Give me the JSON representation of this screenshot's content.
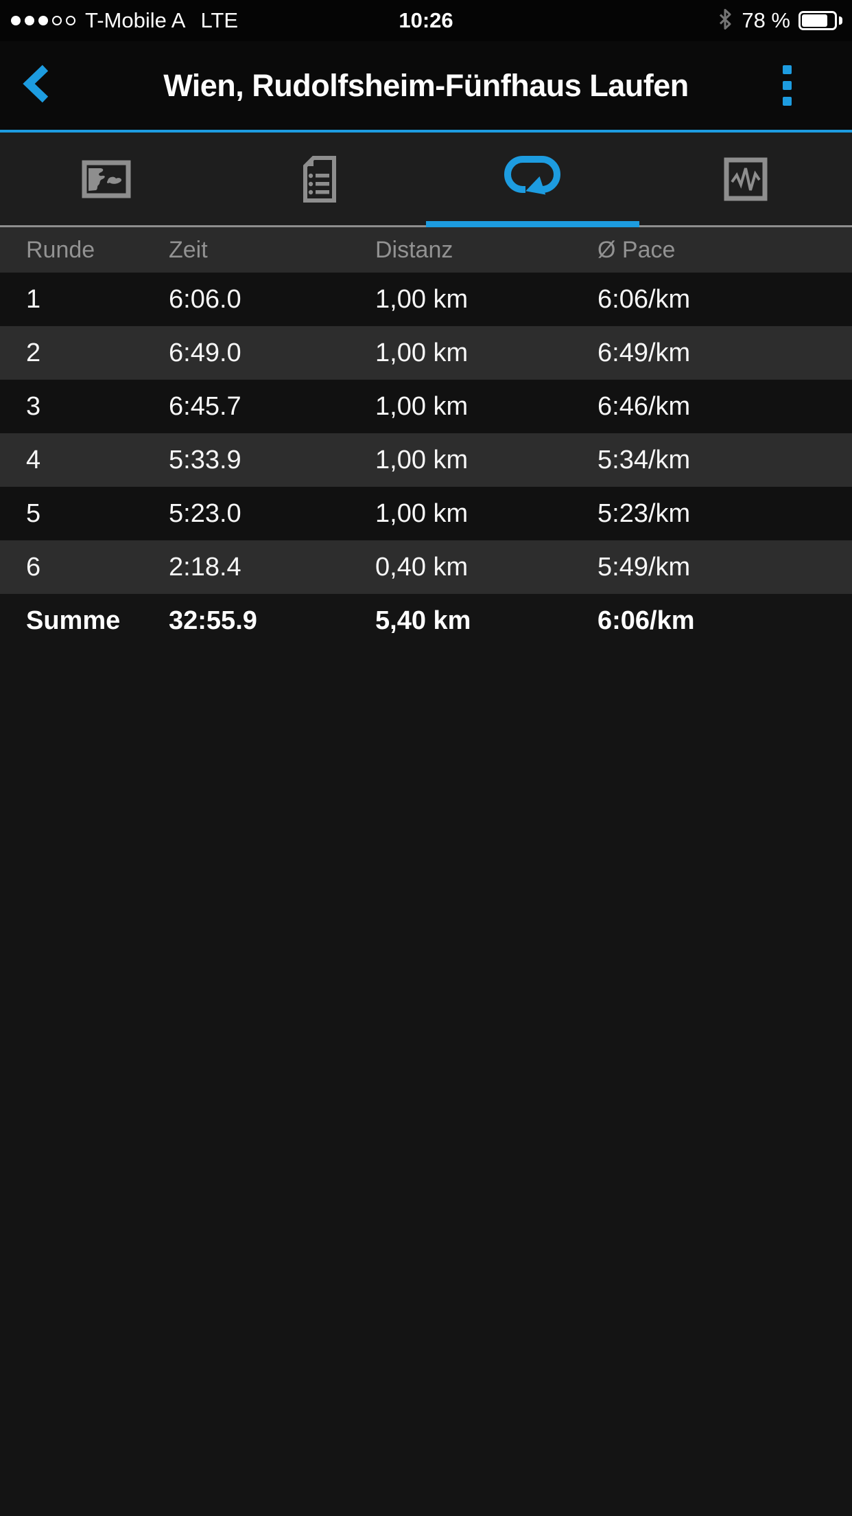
{
  "colors": {
    "accent": "#1d9ce0",
    "inactive_icon": "#8e8e8e",
    "header_text": "#929292",
    "row_dark": "#111111",
    "row_light": "#2d2d2d"
  },
  "status_bar": {
    "signal": {
      "filled_dots": 3,
      "total_dots": 5
    },
    "carrier": "T-Mobile A",
    "network": "LTE",
    "time": "10:26",
    "bluetooth_icon": "bluetooth",
    "battery_label": "78 %",
    "battery_level_percent": 78
  },
  "nav": {
    "back_icon": "chevron-left",
    "title": "Wien, Rudolfsheim-Fünfhaus Laufen",
    "menu_icon": "vertical-dots-menu"
  },
  "tabs": [
    {
      "id": "map",
      "icon": "map-icon",
      "active": false
    },
    {
      "id": "details",
      "icon": "document-list-icon",
      "active": false
    },
    {
      "id": "laps",
      "icon": "laps-loop-icon",
      "active": true
    },
    {
      "id": "charts",
      "icon": "chart-zigzag-icon",
      "active": false
    }
  ],
  "laps_table": {
    "columns": [
      "Runde",
      "Zeit",
      "Distanz",
      "Ø Pace"
    ],
    "rows": [
      [
        "1",
        "6:06.0",
        "1,00 km",
        "6:06/km"
      ],
      [
        "2",
        "6:49.0",
        "1,00 km",
        "6:49/km"
      ],
      [
        "3",
        "6:45.7",
        "1,00 km",
        "6:46/km"
      ],
      [
        "4",
        "5:33.9",
        "1,00 km",
        "5:34/km"
      ],
      [
        "5",
        "5:23.0",
        "1,00 km",
        "5:23/km"
      ],
      [
        "6",
        "2:18.4",
        "0,40 km",
        "5:49/km"
      ]
    ],
    "summary": [
      "Summe",
      "32:55.9",
      "5,40 km",
      "6:06/km"
    ]
  }
}
